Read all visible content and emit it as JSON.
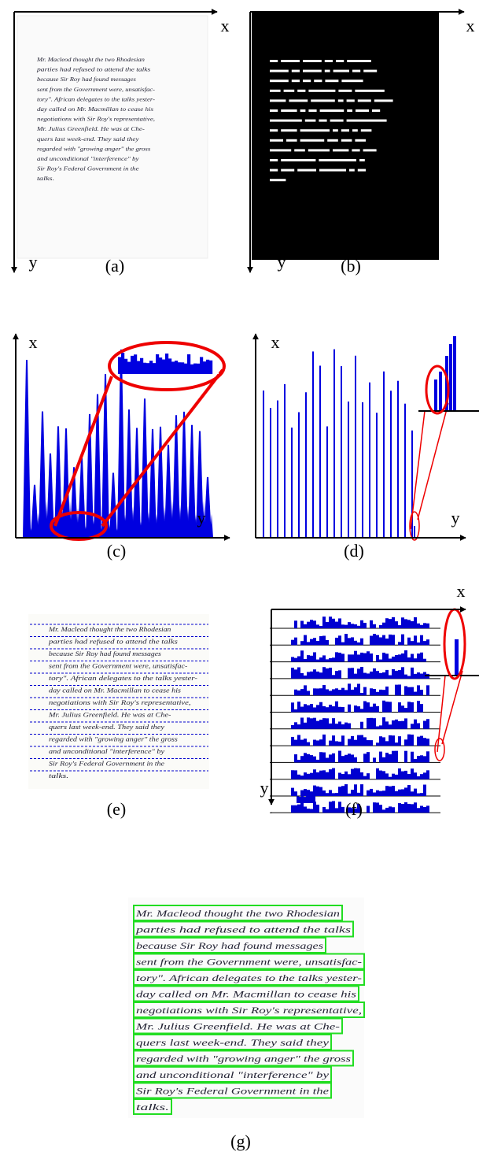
{
  "axis_labels": {
    "x": "x",
    "y": "y"
  },
  "panels": [
    {
      "label": "(a)"
    },
    {
      "label": "(b)"
    },
    {
      "label": "(c)"
    },
    {
      "label": "(d)"
    },
    {
      "label": "(e)"
    },
    {
      "label": "(f)"
    },
    {
      "label": "(g)"
    }
  ],
  "handwriting": {
    "lines": [
      "Mr. Macleod thought the two Rhodesian",
      "parties had refused to attend the talks",
      "because Sir Roy had found messages",
      "sent from the Government were, unsatisfac-",
      "tory\". African delegates to the talks yester-",
      "day called on Mr. Macmillan to cease his",
      "negotiations with Sir Roy's representative,",
      "Mr. Julius Greenfield. He was at Che-",
      "quers last week-end. They said they",
      "regarded with \"growing anger\" the gross",
      "and unconditional \"interference\" by",
      "Sir Roy's Federal Government in the",
      "talks."
    ]
  }
}
